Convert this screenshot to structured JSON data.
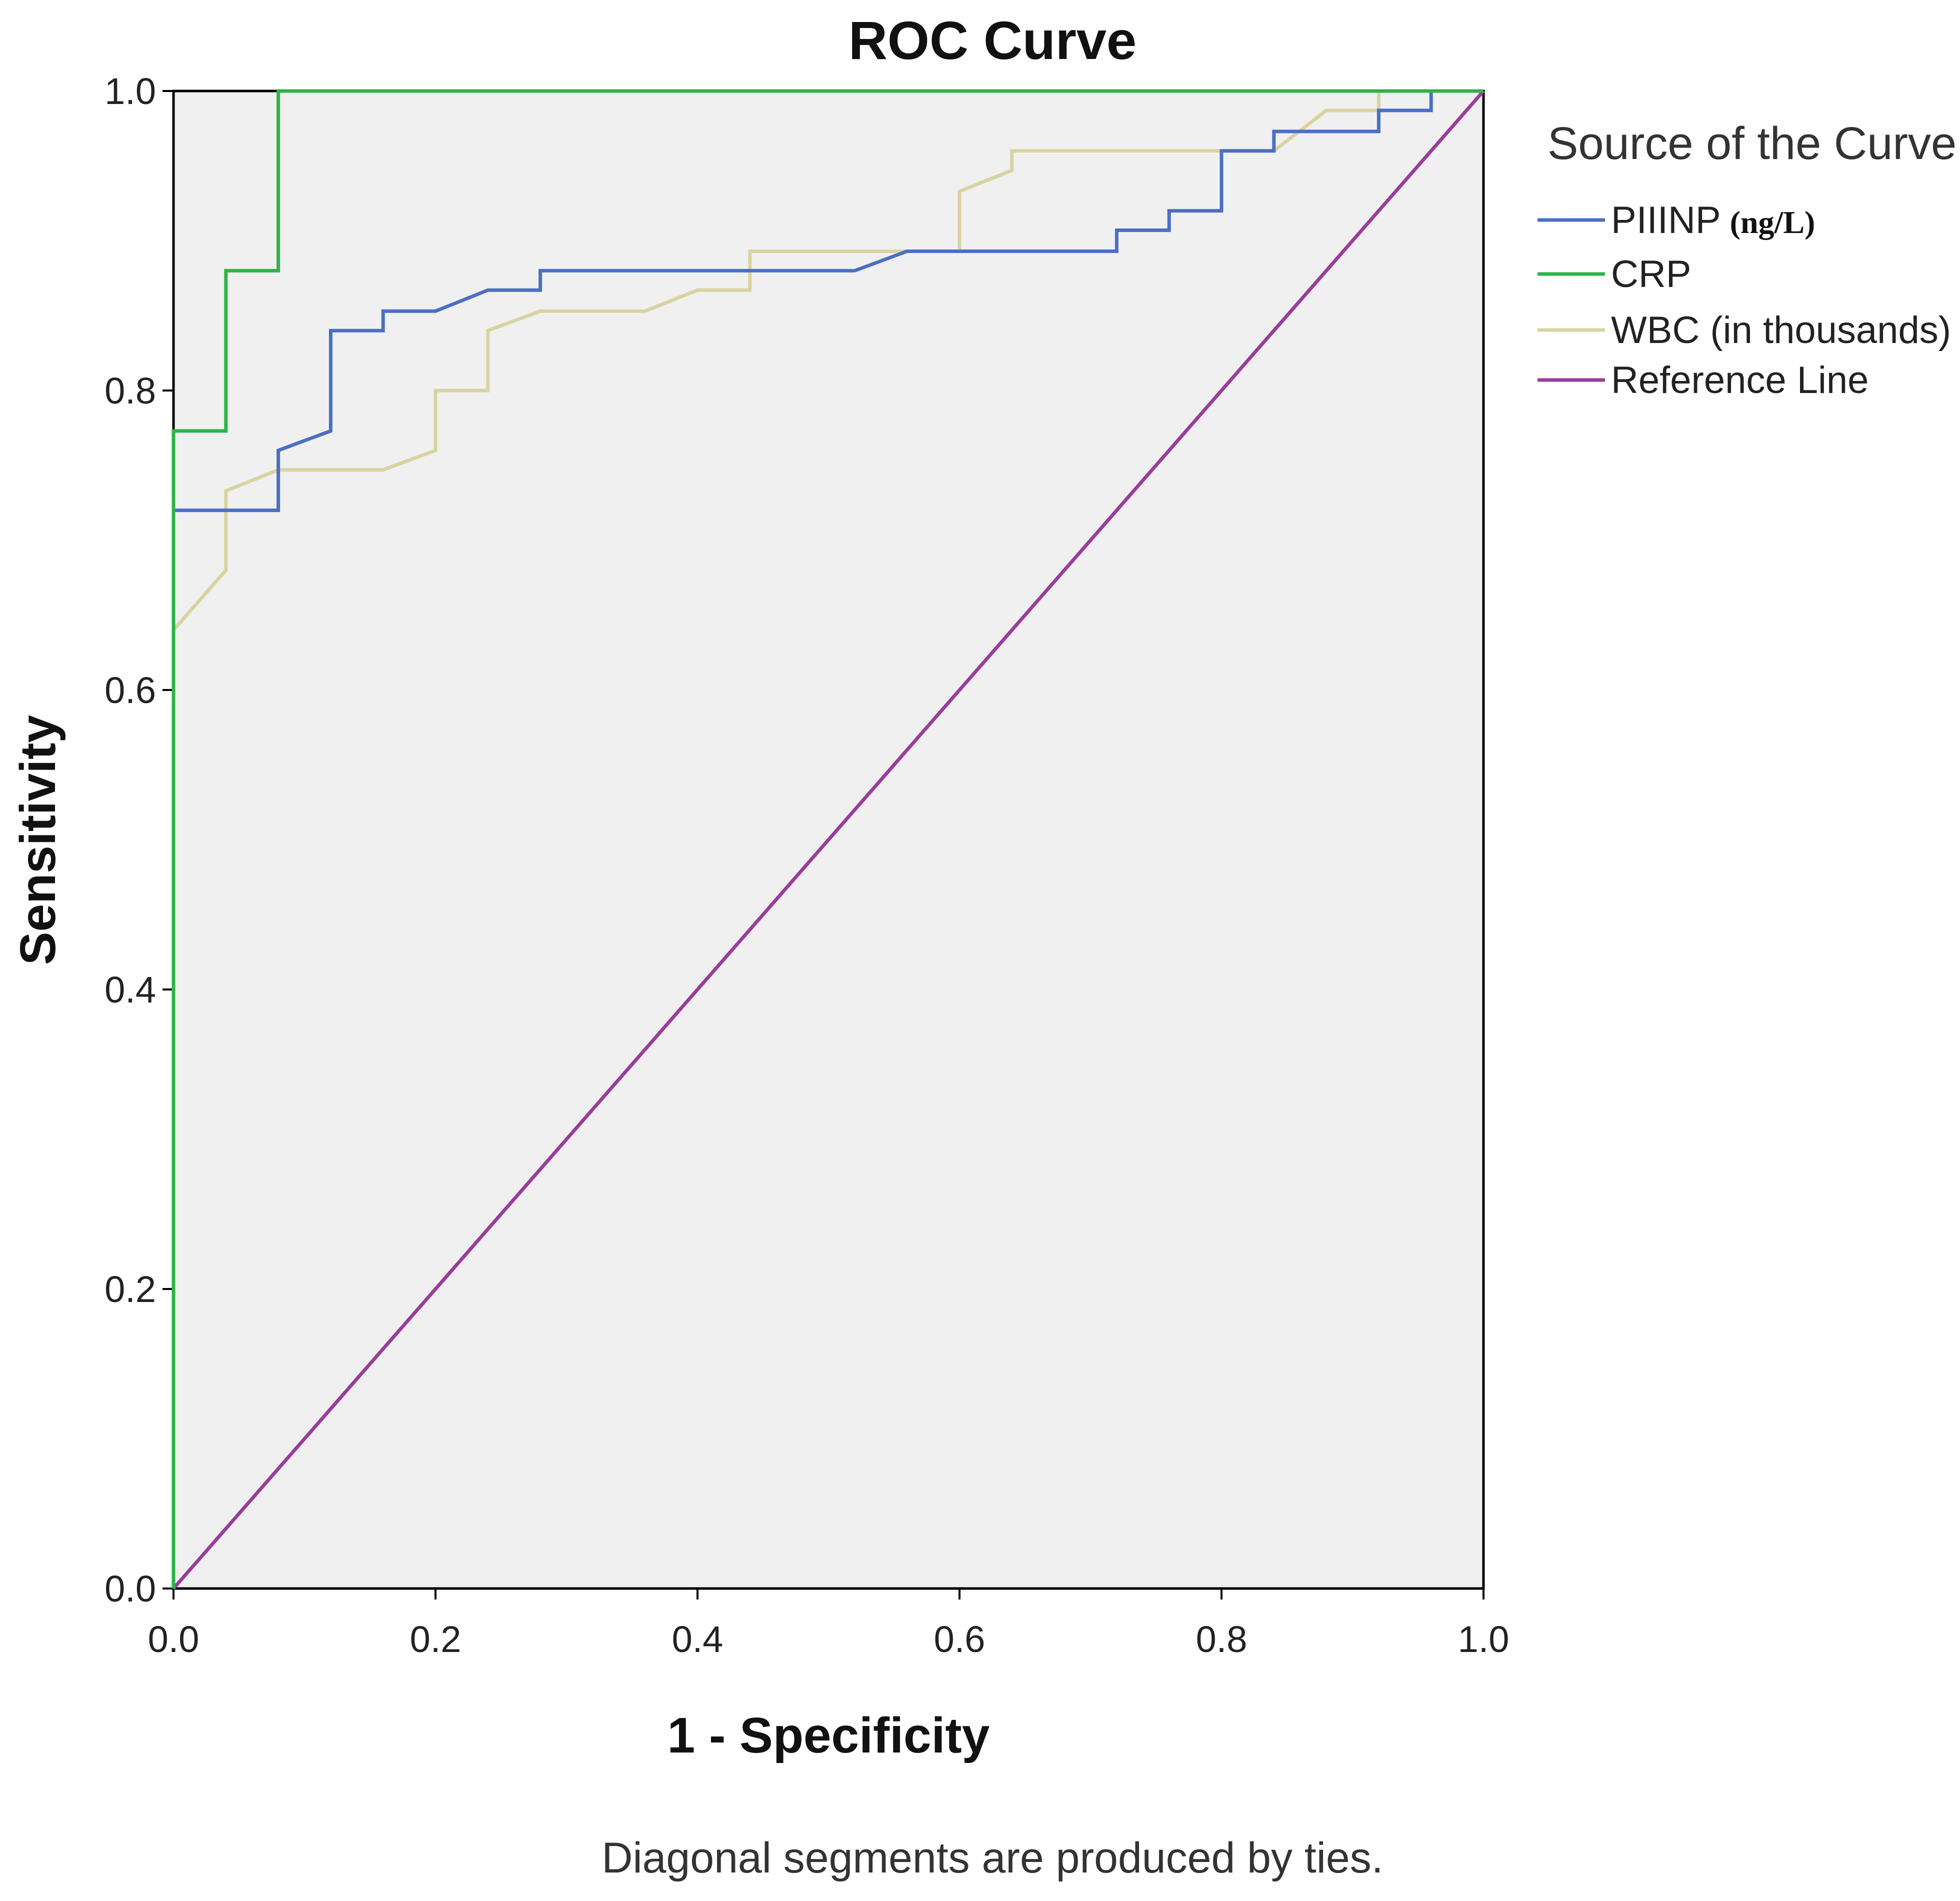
{
  "chart_data": {
    "type": "line",
    "title": "ROC Curve",
    "xlabel": "1 - Specificity",
    "ylabel": "Sensitivity",
    "xlim": [
      0,
      1
    ],
    "ylim": [
      0,
      1
    ],
    "grid": false,
    "xticks": [
      "0.0",
      "0.2",
      "0.4",
      "0.6",
      "0.8",
      "1.0"
    ],
    "yticks": [
      "0.0",
      "0.2",
      "0.4",
      "0.6",
      "0.8",
      "1.0"
    ],
    "legend": {
      "title": "Source of the Curve",
      "position": "right",
      "entries": [
        {
          "label": "PIIINP",
          "unit": "(ng/L)",
          "color": "#4a6fc4"
        },
        {
          "label": "CRP",
          "unit": "",
          "color": "#2fb34a"
        },
        {
          "label": "WBC (in thousands)",
          "unit": "",
          "color": "#d9d3a0"
        },
        {
          "label": "Reference Line",
          "unit": "",
          "color": "#993d99"
        }
      ]
    },
    "footnote": "Diagonal segments are produced by ties.",
    "series": [
      {
        "name": "PIIINP (ng/L)",
        "color": "#4a6fc4",
        "points": [
          [
            0,
            0
          ],
          [
            0,
            0.72
          ],
          [
            0.08,
            0.72
          ],
          [
            0.08,
            0.76
          ],
          [
            0.12,
            0.773
          ],
          [
            0.12,
            0.84
          ],
          [
            0.16,
            0.84
          ],
          [
            0.16,
            0.853
          ],
          [
            0.2,
            0.853
          ],
          [
            0.24,
            0.867
          ],
          [
            0.28,
            0.867
          ],
          [
            0.28,
            0.88
          ],
          [
            0.52,
            0.88
          ],
          [
            0.56,
            0.893
          ],
          [
            0.72,
            0.893
          ],
          [
            0.72,
            0.907
          ],
          [
            0.76,
            0.907
          ],
          [
            0.76,
            0.92
          ],
          [
            0.8,
            0.92
          ],
          [
            0.8,
            0.96
          ],
          [
            0.84,
            0.96
          ],
          [
            0.84,
            0.973
          ],
          [
            0.92,
            0.973
          ],
          [
            0.92,
            0.987
          ],
          [
            0.96,
            0.987
          ],
          [
            0.96,
            1.0
          ],
          [
            1.0,
            1.0
          ]
        ]
      },
      {
        "name": "CRP",
        "color": "#2fb34a",
        "points": [
          [
            0,
            0
          ],
          [
            0,
            0.773
          ],
          [
            0.04,
            0.773
          ],
          [
            0.04,
            0.88
          ],
          [
            0.08,
            0.88
          ],
          [
            0.08,
            1.0
          ],
          [
            1.0,
            1.0
          ]
        ]
      },
      {
        "name": "WBC (in thousands)",
        "color": "#d9d3a0",
        "points": [
          [
            0,
            0
          ],
          [
            0,
            0.64
          ],
          [
            0.04,
            0.68
          ],
          [
            0.04,
            0.733
          ],
          [
            0.08,
            0.747
          ],
          [
            0.16,
            0.747
          ],
          [
            0.2,
            0.76
          ],
          [
            0.2,
            0.8
          ],
          [
            0.24,
            0.8
          ],
          [
            0.24,
            0.84
          ],
          [
            0.28,
            0.853
          ],
          [
            0.36,
            0.853
          ],
          [
            0.4,
            0.867
          ],
          [
            0.44,
            0.867
          ],
          [
            0.44,
            0.893
          ],
          [
            0.6,
            0.893
          ],
          [
            0.6,
            0.933
          ],
          [
            0.64,
            0.947
          ],
          [
            0.64,
            0.96
          ],
          [
            0.84,
            0.96
          ],
          [
            0.88,
            0.987
          ],
          [
            0.92,
            0.987
          ],
          [
            0.92,
            1.0
          ],
          [
            1.0,
            1.0
          ]
        ]
      },
      {
        "name": "Reference Line",
        "color": "#993d99",
        "points": [
          [
            0,
            0
          ],
          [
            1,
            1
          ]
        ]
      }
    ]
  }
}
